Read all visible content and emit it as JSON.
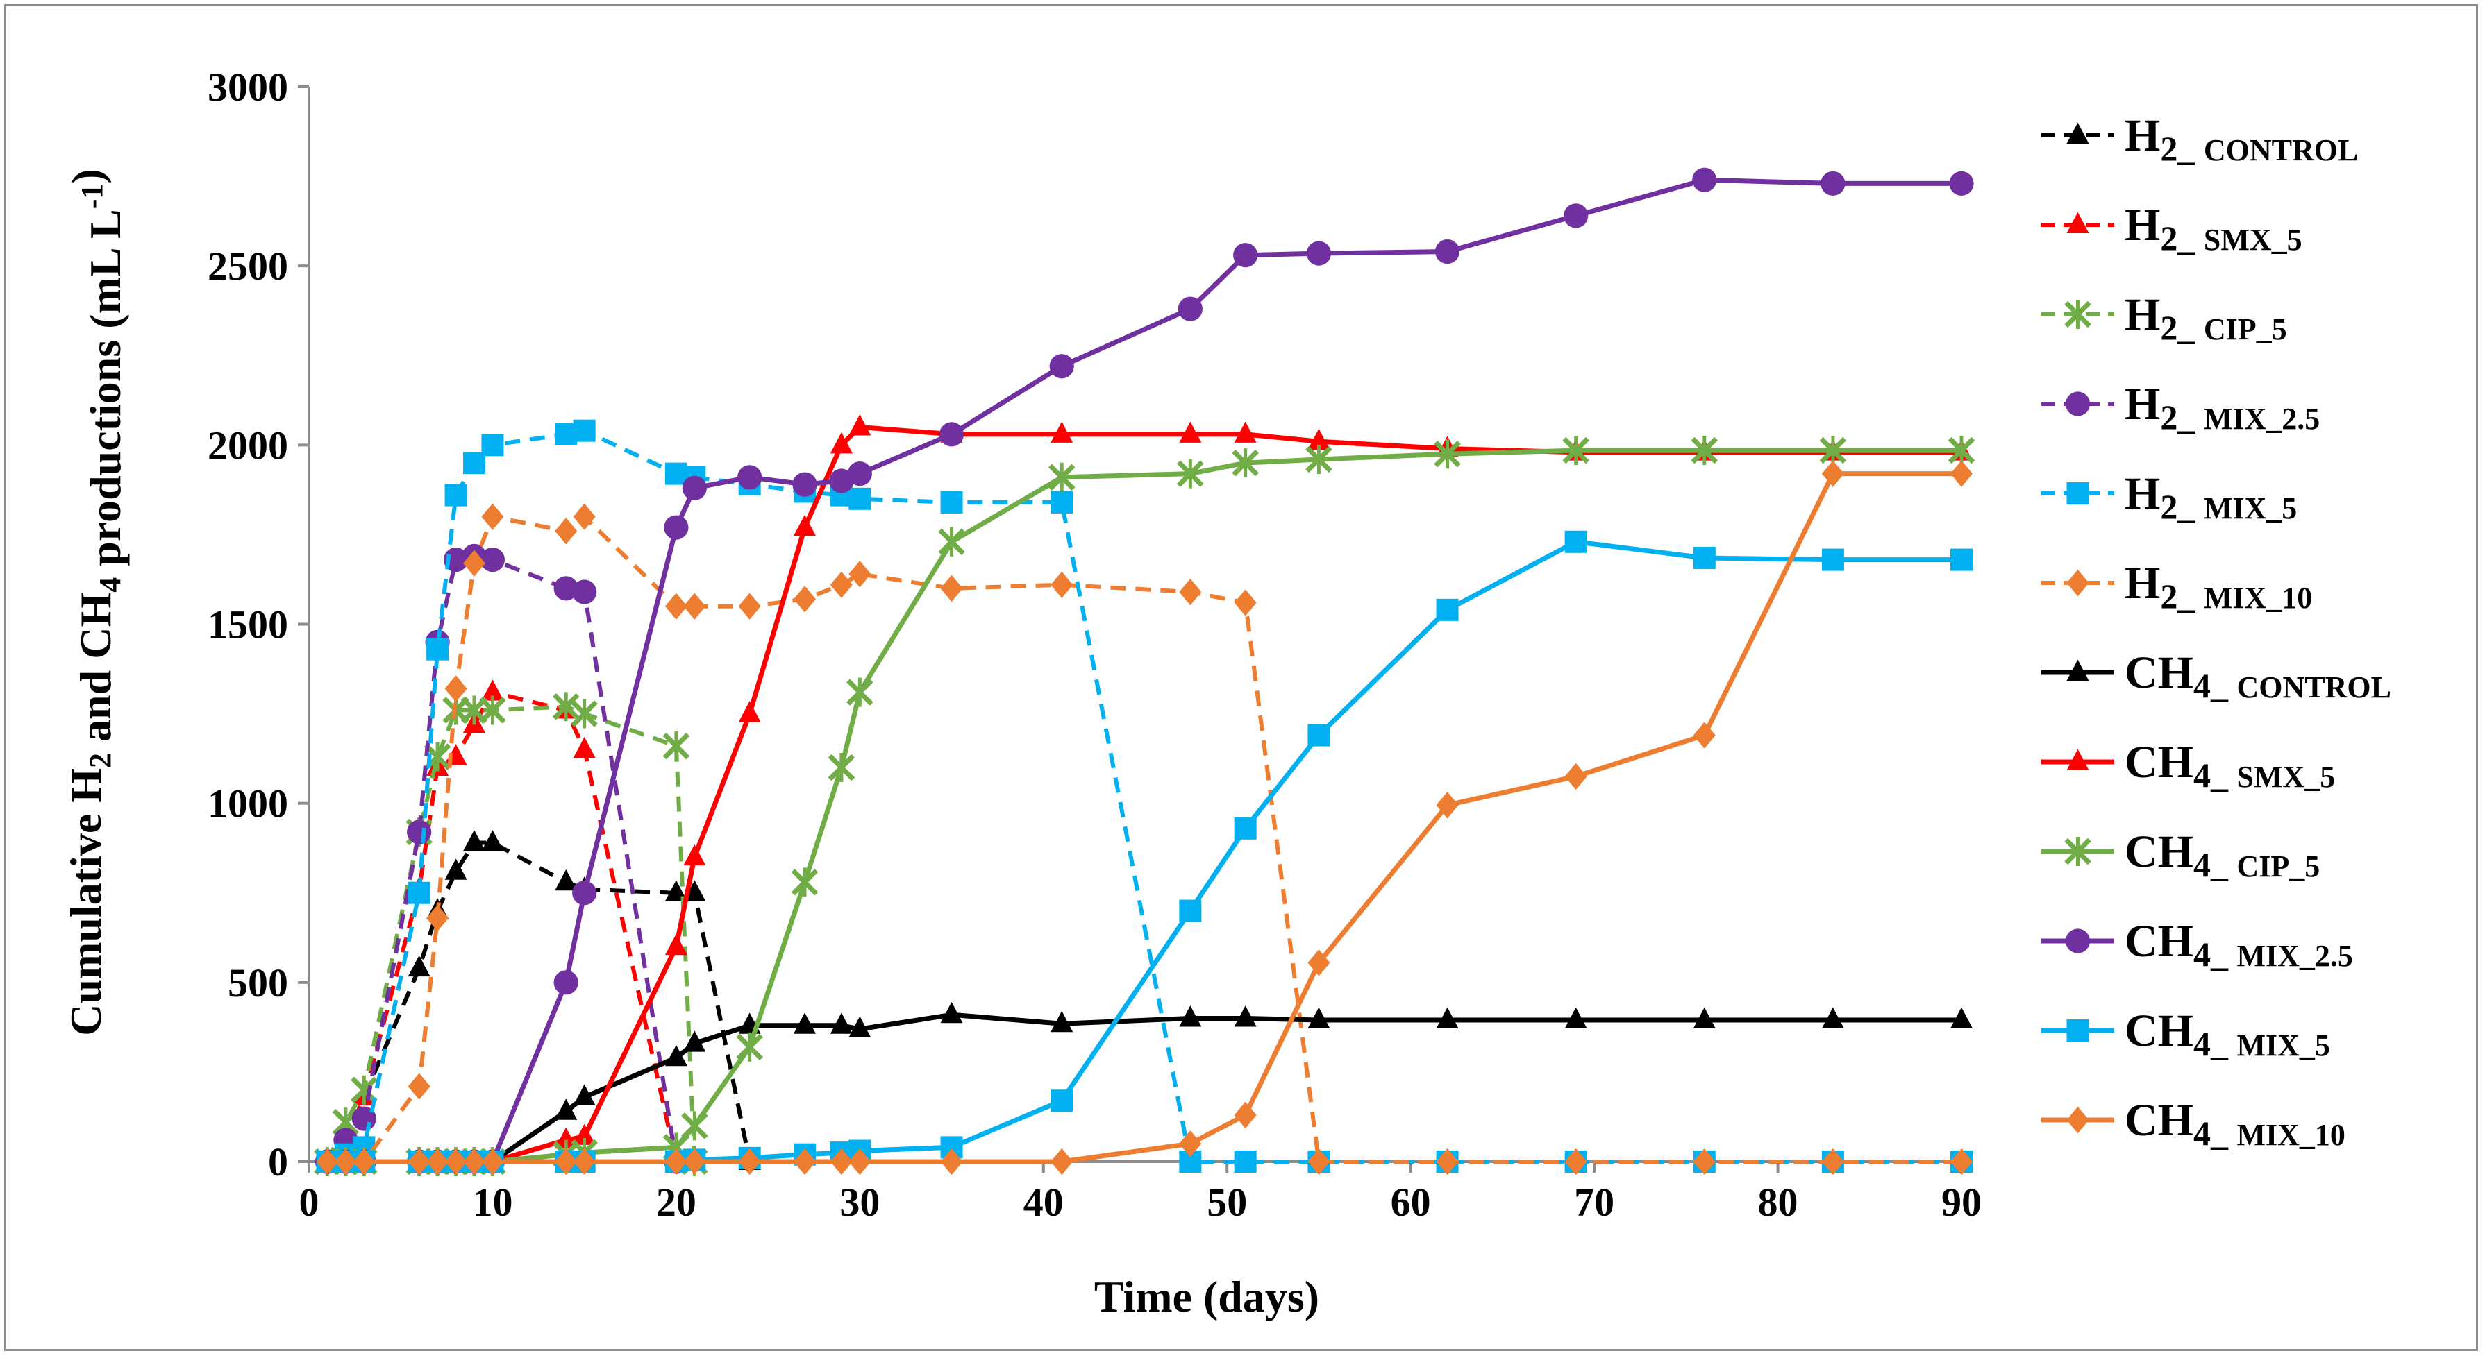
{
  "chart_data": {
    "type": "line",
    "title": "",
    "xlabel": "Time (days)",
    "ylabel": "Cumulative H2 and CH4 productions (mL L-1)",
    "xlim": [
      0,
      90
    ],
    "ylim": [
      0,
      3000
    ],
    "xticks": [
      "0",
      "10",
      "20",
      "30",
      "40",
      "50",
      "60",
      "70",
      "80",
      "90"
    ],
    "yticks": [
      "0",
      "500",
      "1000",
      "1500",
      "2000",
      "2500",
      "3000"
    ],
    "grid": false,
    "legend_position": "right",
    "series": [
      {
        "name": "H2_CONTROL",
        "gas": "H2",
        "label": "CONTROL",
        "color": "#000000",
        "marker": "triangle",
        "dashed": true,
        "x": [
          1,
          2,
          3,
          6,
          7,
          8,
          9,
          10,
          14,
          15,
          20,
          21,
          24
        ],
        "y": [
          0,
          60,
          180,
          540,
          700,
          810,
          890,
          890,
          780,
          760,
          750,
          750,
          0
        ]
      },
      {
        "name": "H2_SMX_5",
        "gas": "H2",
        "label": "SMX_5",
        "color": "#ff0000",
        "marker": "triangle",
        "dashed": true,
        "x": [
          1,
          2,
          3,
          6,
          7,
          8,
          9,
          10,
          14,
          15,
          20
        ],
        "y": [
          0,
          60,
          180,
          760,
          1100,
          1130,
          1220,
          1310,
          1260,
          1150,
          0
        ]
      },
      {
        "name": "H2_CIP_5",
        "gas": "H2",
        "label": "CIP_5",
        "color": "#70ad47",
        "marker": "star",
        "dashed": true,
        "x": [
          1,
          2,
          3,
          6,
          7,
          8,
          9,
          10,
          14,
          15,
          20,
          21
        ],
        "y": [
          0,
          110,
          200,
          920,
          1130,
          1260,
          1260,
          1260,
          1270,
          1250,
          1160,
          0
        ]
      },
      {
        "name": "H2_MIX_2.5",
        "gas": "H2",
        "label": "MIX_2.5",
        "color": "#7030a0",
        "marker": "circle",
        "dashed": true,
        "x": [
          1,
          2,
          3,
          6,
          7,
          8,
          9,
          10,
          14,
          15,
          20
        ],
        "y": [
          0,
          60,
          120,
          920,
          1450,
          1680,
          1690,
          1680,
          1600,
          1590,
          0
        ]
      },
      {
        "name": "H2_MIX_5",
        "gas": "H2",
        "label": "MIX_5",
        "color": "#00b0f0",
        "marker": "square",
        "dashed": true,
        "x": [
          1,
          2,
          3,
          6,
          7,
          8,
          9,
          10,
          14,
          15,
          20,
          21,
          24,
          27,
          29,
          30,
          35,
          41,
          48,
          51,
          55,
          62,
          69,
          76,
          83,
          90
        ],
        "y": [
          0,
          20,
          40,
          750,
          1430,
          1860,
          1950,
          2000,
          2030,
          2040,
          1920,
          1910,
          1890,
          1870,
          1860,
          1850,
          1840,
          1840,
          0,
          0,
          0,
          0,
          0,
          0,
          0,
          0
        ]
      },
      {
        "name": "H2_MIX_10",
        "gas": "H2",
        "label": "MIX_10",
        "color": "#ed7d31",
        "marker": "diamond",
        "dashed": true,
        "x": [
          1,
          2,
          3,
          6,
          7,
          8,
          9,
          10,
          14,
          15,
          20,
          21,
          24,
          27,
          29,
          30,
          35,
          41,
          48,
          51,
          55,
          62,
          69,
          76,
          83,
          90
        ],
        "y": [
          0,
          0,
          0,
          210,
          680,
          1320,
          1670,
          1800,
          1760,
          1800,
          1550,
          1550,
          1550,
          1570,
          1610,
          1640,
          1600,
          1610,
          1590,
          1560,
          0,
          0,
          0,
          0,
          0,
          0
        ]
      },
      {
        "name": "CH4_CONTROL",
        "gas": "CH4",
        "label": "CONTROL",
        "color": "#000000",
        "marker": "triangle",
        "dashed": false,
        "x": [
          1,
          2,
          3,
          6,
          7,
          8,
          9,
          10,
          14,
          15,
          20,
          21,
          24,
          27,
          29,
          30,
          35,
          41,
          48,
          51,
          55,
          62,
          69,
          76,
          83,
          90
        ],
        "y": [
          0,
          0,
          0,
          0,
          0,
          0,
          0,
          0,
          140,
          180,
          290,
          330,
          380,
          380,
          380,
          370,
          410,
          385,
          400,
          400,
          395,
          395,
          395,
          395,
          395,
          395
        ]
      },
      {
        "name": "CH4_SMX_5",
        "gas": "CH4",
        "label": "SMX_5",
        "color": "#ff0000",
        "marker": "triangle",
        "dashed": false,
        "x": [
          1,
          2,
          3,
          6,
          7,
          8,
          9,
          10,
          14,
          15,
          20,
          21,
          24,
          27,
          29,
          30,
          35,
          41,
          48,
          51,
          55,
          62,
          69,
          76,
          83,
          90
        ],
        "y": [
          0,
          0,
          0,
          0,
          0,
          0,
          0,
          0,
          60,
          70,
          600,
          850,
          1250,
          1770,
          2000,
          2050,
          2030,
          2030,
          2030,
          2030,
          2010,
          1990,
          1980,
          1980,
          1980,
          1980
        ]
      },
      {
        "name": "CH4_CIP_5",
        "gas": "CH4",
        "label": "CIP_5",
        "color": "#70ad47",
        "marker": "star",
        "dashed": false,
        "x": [
          1,
          2,
          3,
          6,
          7,
          8,
          9,
          10,
          14,
          15,
          20,
          21,
          24,
          27,
          29,
          30,
          35,
          41,
          48,
          51,
          55,
          62,
          69,
          76,
          83,
          90
        ],
        "y": [
          0,
          0,
          0,
          0,
          0,
          0,
          0,
          0,
          20,
          25,
          40,
          100,
          320,
          780,
          1100,
          1310,
          1730,
          1910,
          1920,
          1950,
          1960,
          1975,
          1985,
          1985,
          1985,
          1985
        ]
      },
      {
        "name": "CH4_MIX_2.5",
        "gas": "CH4",
        "label": "MIX_2.5",
        "color": "#7030a0",
        "marker": "circle",
        "dashed": false,
        "x": [
          1,
          2,
          3,
          6,
          7,
          8,
          9,
          10,
          14,
          15,
          20,
          21,
          24,
          27,
          29,
          30,
          35,
          41,
          48,
          51,
          55,
          62,
          69,
          76,
          83,
          90
        ],
        "y": [
          0,
          0,
          0,
          0,
          0,
          0,
          0,
          0,
          500,
          750,
          1770,
          1880,
          1910,
          1890,
          1900,
          1920,
          2030,
          2220,
          2380,
          2530,
          2535,
          2540,
          2640,
          2740,
          2730,
          2730
        ]
      },
      {
        "name": "CH4_MIX_5",
        "gas": "CH4",
        "label": "MIX_5",
        "color": "#00b0f0",
        "marker": "square",
        "dashed": false,
        "x": [
          1,
          2,
          3,
          6,
          7,
          8,
          9,
          10,
          14,
          15,
          20,
          21,
          24,
          27,
          29,
          30,
          35,
          41,
          48,
          51,
          55,
          62,
          69,
          76,
          83,
          90
        ],
        "y": [
          0,
          0,
          0,
          0,
          0,
          0,
          0,
          0,
          0,
          0,
          0,
          5,
          10,
          20,
          25,
          30,
          40,
          170,
          700,
          930,
          1190,
          1540,
          1730,
          1685,
          1680,
          1680
        ]
      },
      {
        "name": "CH4_MIX_10",
        "gas": "CH4",
        "label": "MIX_10",
        "color": "#ed7d31",
        "marker": "diamond",
        "dashed": false,
        "x": [
          1,
          2,
          3,
          6,
          7,
          8,
          9,
          10,
          14,
          15,
          20,
          21,
          24,
          27,
          29,
          30,
          35,
          41,
          48,
          51,
          55,
          62,
          69,
          76,
          83,
          90
        ],
        "y": [
          0,
          0,
          0,
          0,
          0,
          0,
          0,
          0,
          0,
          0,
          0,
          0,
          0,
          0,
          0,
          0,
          0,
          0,
          50,
          130,
          555,
          995,
          1075,
          1190,
          1920,
          1920
        ]
      }
    ]
  }
}
